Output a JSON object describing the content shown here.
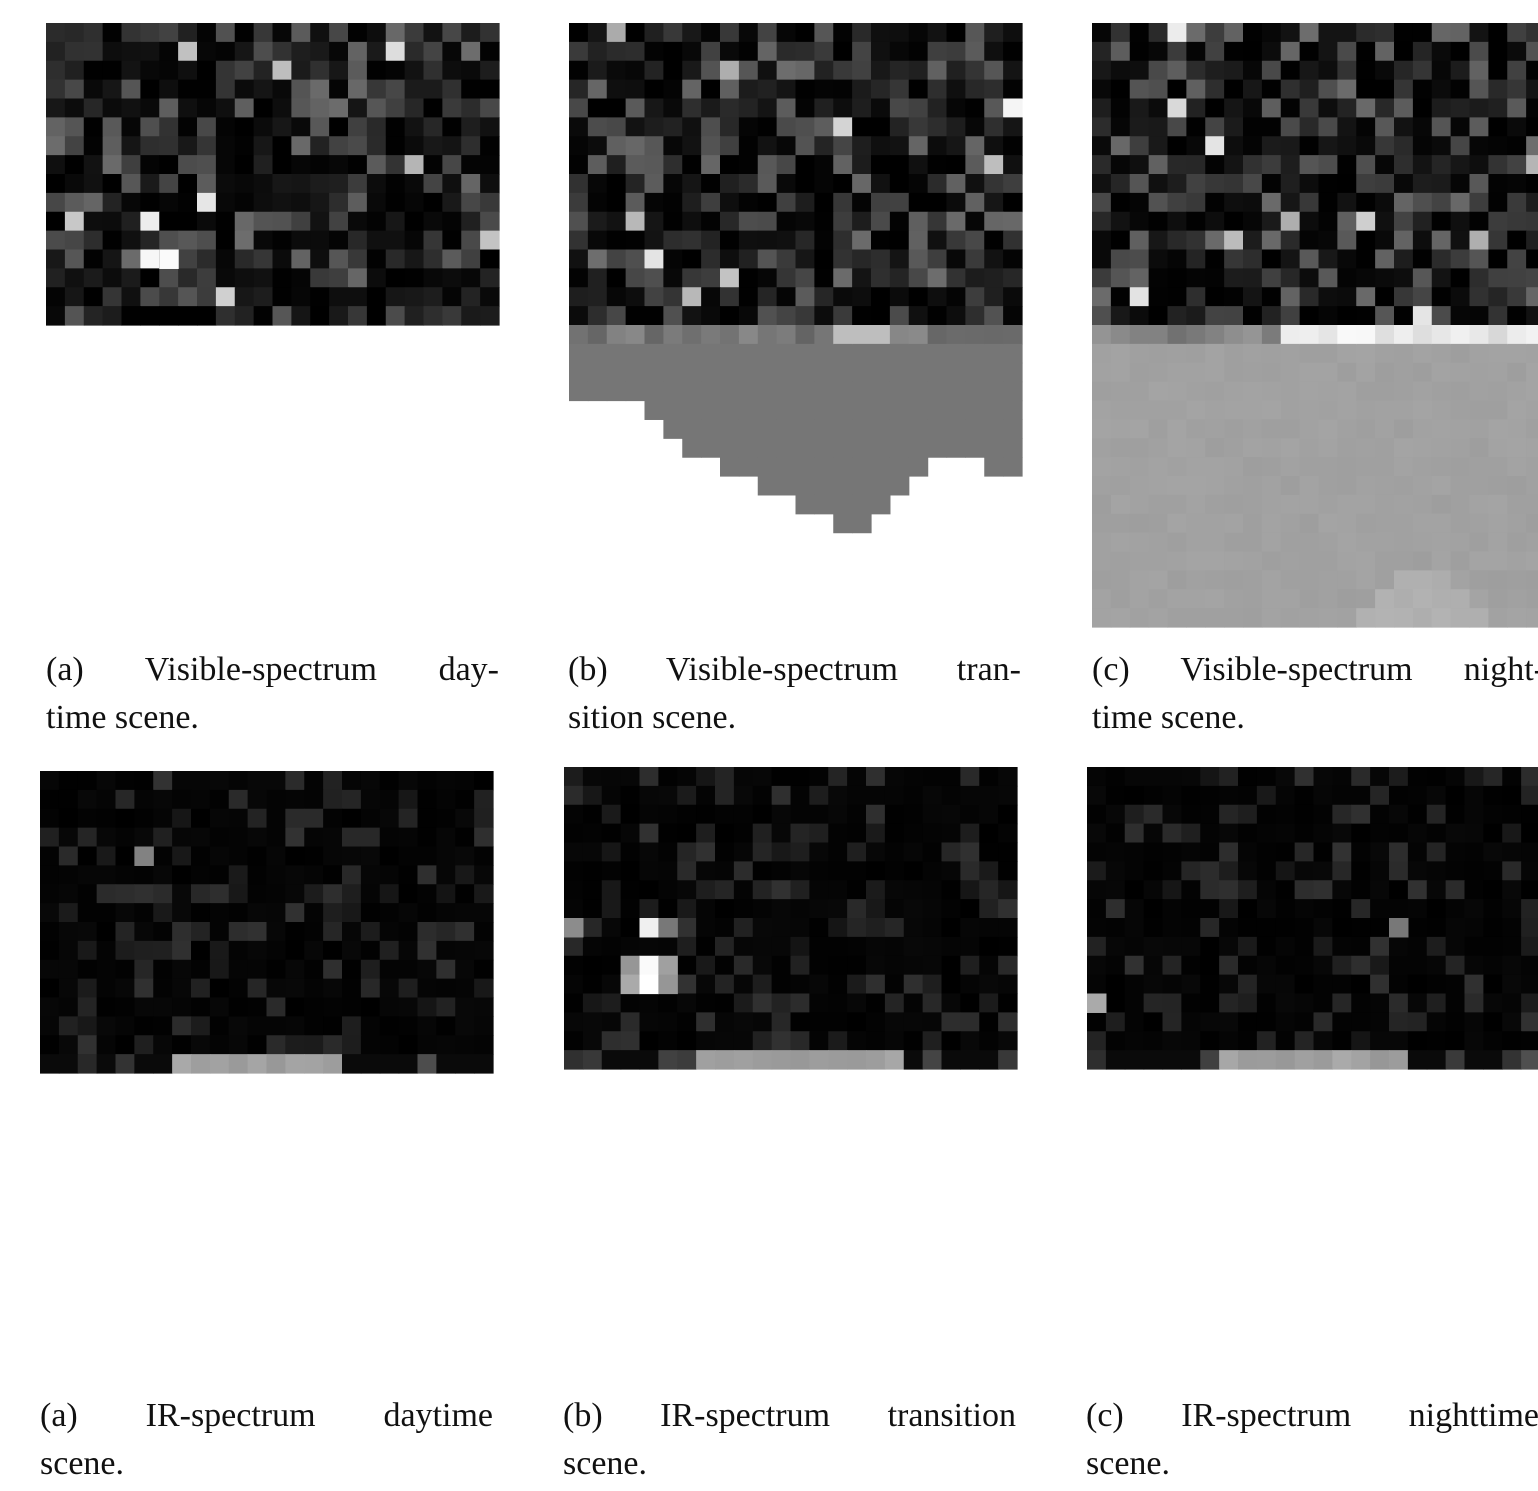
{
  "panels": [
    {
      "caption": [
        "(a) Visible-spectrum day-",
        "time scene."
      ]
    },
    {
      "caption": [
        "(b) Visible-spectrum tran-",
        "sition scene."
      ]
    },
    {
      "caption": [
        "(c) Visible-spectrum night-",
        "time scene."
      ]
    },
    {
      "caption": [
        "(a) IR-spectrum daytime",
        "scene."
      ]
    },
    {
      "caption": [
        "(b) IR-spectrum transition",
        "scene."
      ]
    },
    {
      "caption": [
        "(c) IR-spectrum nighttime",
        "scene."
      ]
    }
  ]
}
